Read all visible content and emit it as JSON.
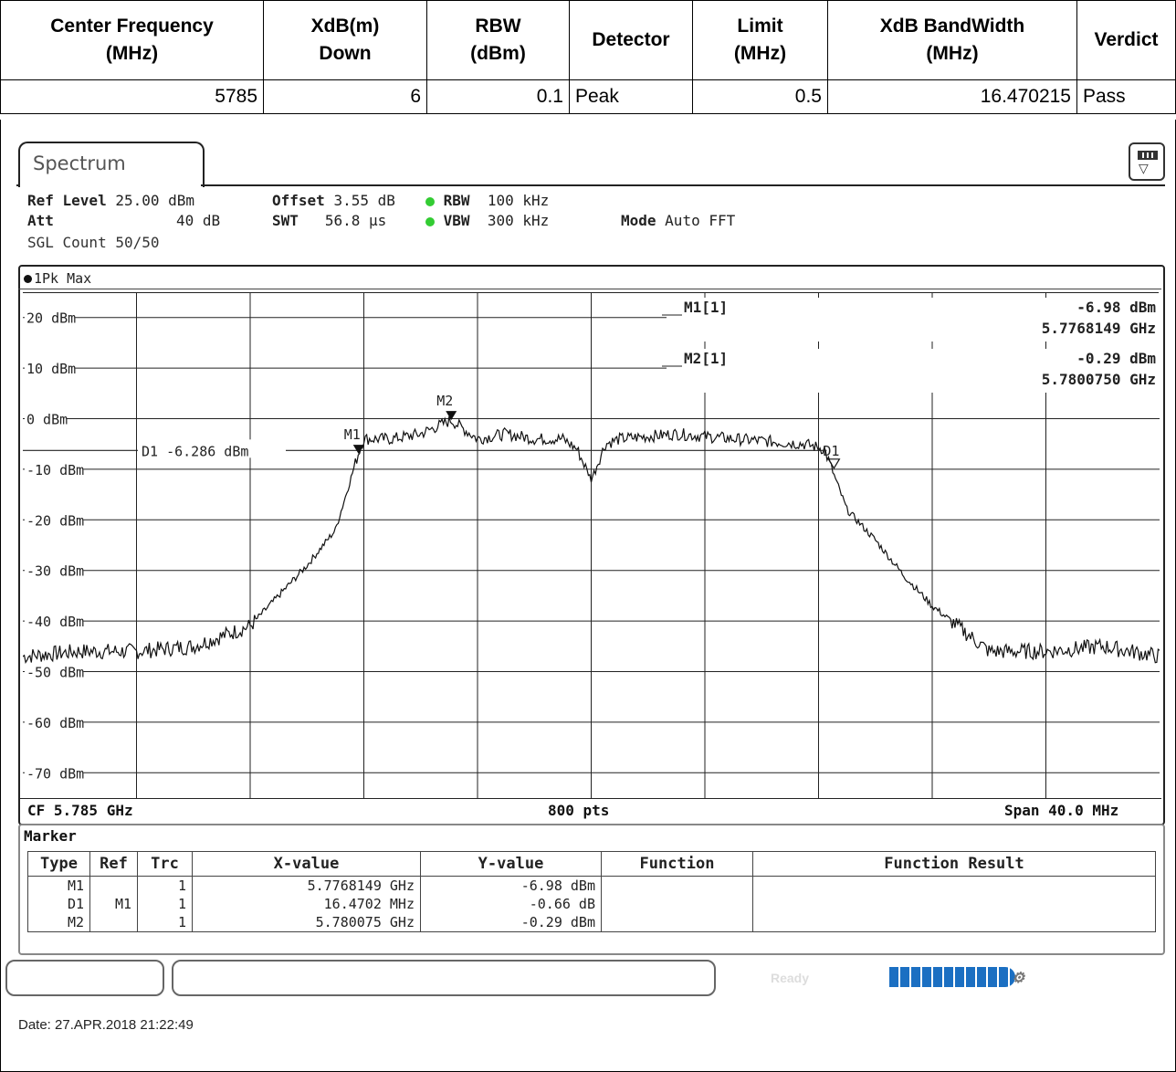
{
  "results_table": {
    "headers": [
      "Center Frequency\n(MHz)",
      "XdB(m)\nDown",
      "RBW\n(dBm)",
      "Detector",
      "Limit\n(MHz)",
      "XdB BandWidth\n(MHz)",
      "Verdict"
    ],
    "h0a": "Center Frequency",
    "h0b": "(MHz)",
    "h1a": "XdB(m)",
    "h1b": "Down",
    "h2a": "RBW",
    "h2b": "(dBm)",
    "h3": "Detector",
    "h4a": "Limit",
    "h4b": "(MHz)",
    "h5a": "XdB BandWidth",
    "h5b": "(MHz)",
    "h6": "Verdict",
    "row": {
      "center": "5785",
      "xdb": "6",
      "rbw": "0.1",
      "detector": "Peak",
      "limit": "0.5",
      "bandwidth": "16.470215",
      "verdict": "Pass"
    }
  },
  "spectrum": {
    "tab": "Spectrum",
    "ref_level_label": "Ref Level",
    "ref_level": "25.00 dBm",
    "offset_label": "Offset",
    "offset": "3.55 dB",
    "rbw_label": "RBW",
    "rbw": "100 kHz",
    "att_label": "Att",
    "att": "40 dB",
    "swt_label": "SWT",
    "swt": "56.8 µs",
    "vbw_label": "VBW",
    "vbw": "300 kHz",
    "mode_label": "Mode",
    "mode": "Auto FFT",
    "sgl": "SGL Count 50/50",
    "trace_label": "1Pk Max",
    "cf": "CF 5.785 GHz",
    "pts": "800 pts",
    "span": "Span 40.0 MHz"
  },
  "chart_data": {
    "type": "line",
    "title": "",
    "xlabel": "",
    "ylabel": "",
    "xlim": [
      5.765,
      5.805
    ],
    "ylim": [
      -75,
      25
    ],
    "y_ticks": [
      "20 dBm",
      "10 dBm",
      "0 dBm",
      "-10 dBm",
      "-20 dBm",
      "-30 dBm",
      "-40 dBm",
      "-50 dBm",
      "-60 dBm",
      "-70 dBm"
    ],
    "grid": true,
    "series": [
      {
        "name": "1Pk Max",
        "x": [
          5.765,
          5.767,
          5.769,
          5.771,
          5.773,
          5.774,
          5.775,
          5.776,
          5.7768,
          5.777,
          5.778,
          5.779,
          5.780075,
          5.781,
          5.782,
          5.783,
          5.784,
          5.7845,
          5.785,
          5.7855,
          5.786,
          5.788,
          5.79,
          5.7925,
          5.7932,
          5.794,
          5.795,
          5.796,
          5.797,
          5.799,
          5.801,
          5.803,
          5.805
        ],
        "values": [
          -47,
          -46,
          -46,
          -45,
          -41,
          -35,
          -29,
          -22,
          -6.98,
          -4,
          -4,
          -3,
          -0.29,
          -4,
          -3,
          -4,
          -4,
          -6,
          -12,
          -5,
          -4,
          -3,
          -4,
          -5,
          -6,
          -18,
          -24,
          -31,
          -37,
          -46,
          -46,
          -45,
          -47
        ]
      }
    ],
    "reference_line": {
      "label": "D1 -6.286 dBm",
      "value": -6.286
    },
    "markers": [
      {
        "label": "M1",
        "x": 5.7768149,
        "y": -6.98
      },
      {
        "label": "M2",
        "x": 5.780075,
        "y": -0.29
      },
      {
        "label": "D1",
        "x": 5.7932851,
        "y": -7.64
      }
    ],
    "marker_readout": [
      {
        "name": "M1[1]",
        "level": "-6.98 dBm",
        "freq": "5.7768149 GHz"
      },
      {
        "name": "M2[1]",
        "level": "-0.29 dBm",
        "freq": "5.7800750 GHz"
      }
    ]
  },
  "marker_table": {
    "title": "Marker",
    "columns": [
      "Type",
      "Ref",
      "Trc",
      "X-value",
      "Y-value",
      "Function",
      "Function Result"
    ],
    "rows": [
      {
        "type": "M1",
        "ref": "",
        "trc": "1",
        "x": "5.7768149 GHz",
        "y": "-6.98 dBm",
        "fn": "",
        "res": ""
      },
      {
        "type": "D1",
        "ref": "M1",
        "trc": "1",
        "x": "16.4702 MHz",
        "y": "-0.66 dB",
        "fn": "",
        "res": ""
      },
      {
        "type": "M2",
        "ref": "",
        "trc": "1",
        "x": "5.780075 GHz",
        "y": "-0.29 dBm",
        "fn": "",
        "res": ""
      }
    ]
  },
  "status": {
    "ready": "Ready",
    "date": "Date: 27.APR.2018  21:22:49"
  },
  "colors": {
    "progress": "#1b6fc2",
    "led": "#33cc33"
  }
}
